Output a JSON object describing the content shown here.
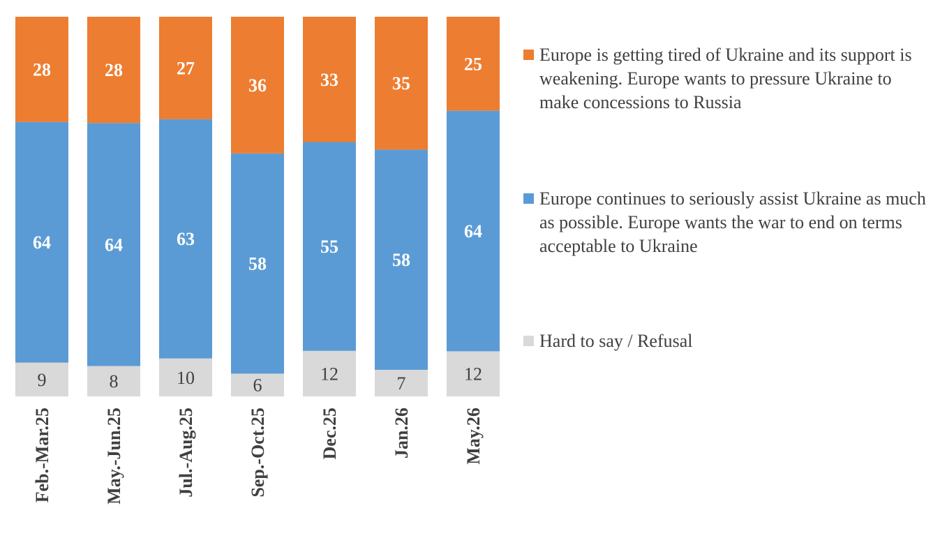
{
  "chart_data": {
    "type": "bar",
    "stacked": true,
    "percent": true,
    "categories": [
      "Feb.-Mar.25",
      "May.-Jun.25",
      "Jul.-Aug.25",
      "Sep.-Oct.25",
      "Dec.25",
      "Jan.26",
      "May.26"
    ],
    "series": [
      {
        "name": "Hard to say / Refusal",
        "color": "#d9d9d9",
        "label_color": "#404040",
        "label_bold": false,
        "values": [
          9,
          8,
          10,
          6,
          12,
          7,
          12
        ]
      },
      {
        "name": "Europe continues to seriously assist Ukraine as much as possible. Europe wants the war to end on terms acceptable to Ukraine",
        "color": "#5b9bd5",
        "label_color": "#ffffff",
        "label_bold": true,
        "values": [
          64,
          64,
          63,
          58,
          55,
          58,
          64
        ]
      },
      {
        "name": "Europe is getting tired of Ukraine and its support is weakening. Europe wants to pressure Ukraine to make concessions to Russia",
        "color": "#ed7d31",
        "label_color": "#ffffff",
        "label_bold": true,
        "values": [
          28,
          28,
          27,
          36,
          33,
          35,
          25
        ]
      }
    ],
    "legend_position": "right",
    "legend_order": [
      2,
      1,
      0
    ],
    "grid": false,
    "tick_label_rotation": "vertical"
  }
}
